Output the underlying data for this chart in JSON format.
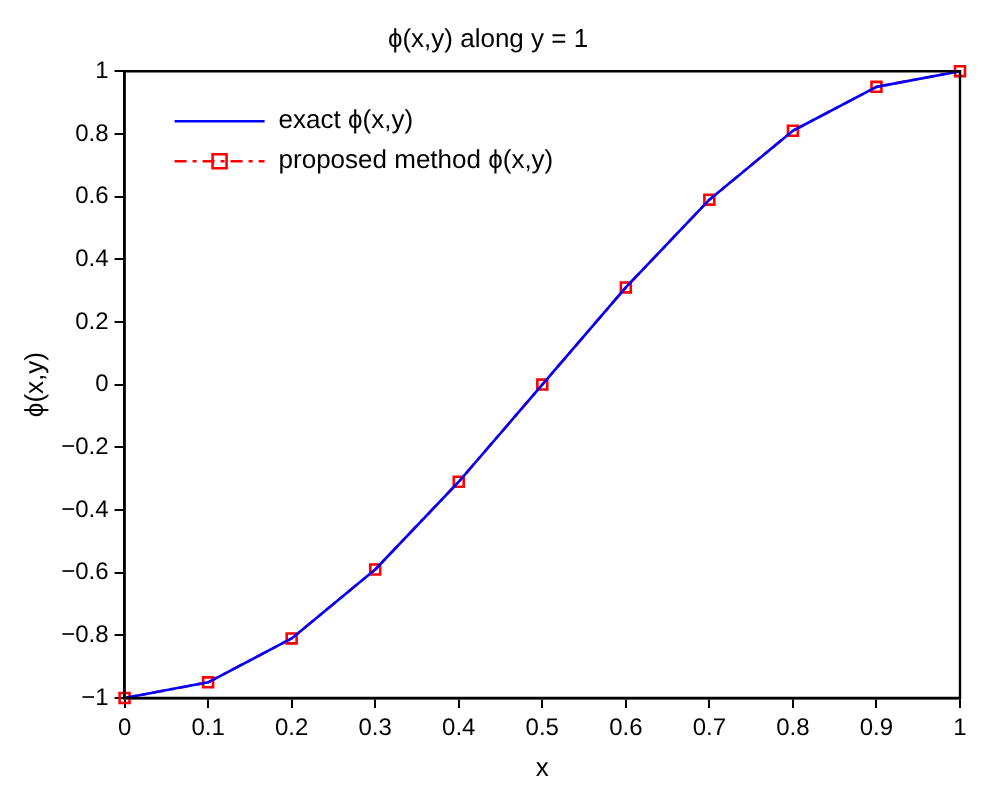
{
  "chart_data": {
    "type": "line",
    "title": "ϕ(x,y) along y = 1",
    "xlabel": "x",
    "ylabel": "ϕ(x,y)",
    "x": [
      0,
      0.1,
      0.2,
      0.3,
      0.4,
      0.5,
      0.6,
      0.7,
      0.8,
      0.9,
      1
    ],
    "series": [
      {
        "name": "exact ϕ(x,y)",
        "color": "#0000ff",
        "marker": "none",
        "line_style": "solid",
        "values": [
          -1,
          -0.95,
          -0.81,
          -0.59,
          -0.31,
          0,
          0.31,
          0.59,
          0.81,
          0.95,
          1
        ]
      },
      {
        "name": "proposed method ϕ(x,y)",
        "color": "#ff0000",
        "marker": "square",
        "line_style": "dashdot",
        "values": [
          -1,
          -0.95,
          -0.81,
          -0.59,
          -0.31,
          0,
          0.31,
          0.59,
          0.81,
          0.95,
          1
        ]
      }
    ],
    "xlim": [
      0,
      1
    ],
    "xticks": [
      0,
      0.1,
      0.2,
      0.3,
      0.4,
      0.5,
      0.6,
      0.7,
      0.8,
      0.9,
      1
    ],
    "ylim": [
      -1,
      1
    ],
    "yticks": [
      {
        "value": -1,
        "label": "−1"
      },
      {
        "value": -0.8,
        "label": "−0.8"
      },
      {
        "value": -0.6,
        "label": "−0.6"
      },
      {
        "value": -0.4,
        "label": "−0.4"
      },
      {
        "value": -0.2,
        "label": "−0.2"
      },
      0,
      0.2,
      0.4,
      0.6,
      0.8,
      1
    ],
    "grid": false,
    "legend": "top left"
  }
}
